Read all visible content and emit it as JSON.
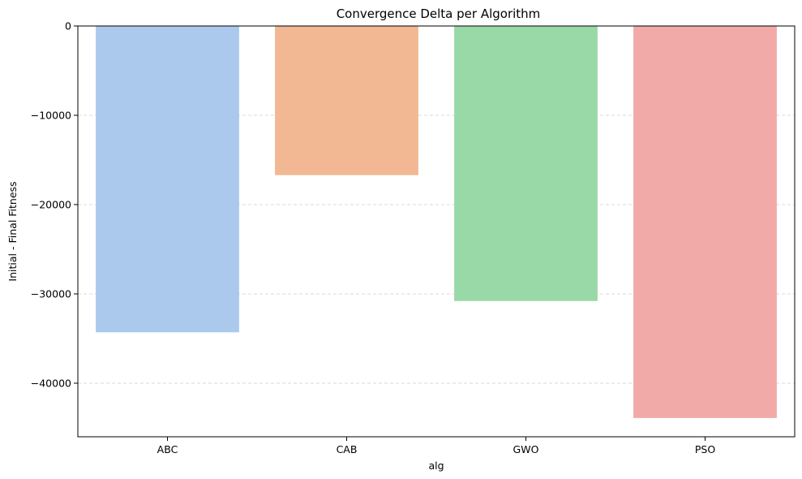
{
  "chart_data": {
    "type": "bar",
    "title": "Convergence Delta per Algorithm",
    "xlabel": "alg",
    "ylabel": "Initial - Final Fitness",
    "categories": [
      "ABC",
      "CAB",
      "GWO",
      "PSO"
    ],
    "values": [
      -34300,
      -16700,
      -30800,
      -43900
    ],
    "colors": [
      "#abc9ec",
      "#f1b893",
      "#99d9a7",
      "#f1aaa8"
    ],
    "ylim": [
      -46000,
      0
    ],
    "yticks": [
      0,
      -10000,
      -20000,
      -30000,
      -40000
    ],
    "ytick_labels": [
      "0",
      "−10000",
      "−20000",
      "−30000",
      "−40000"
    ],
    "grid": "y-dashed"
  }
}
